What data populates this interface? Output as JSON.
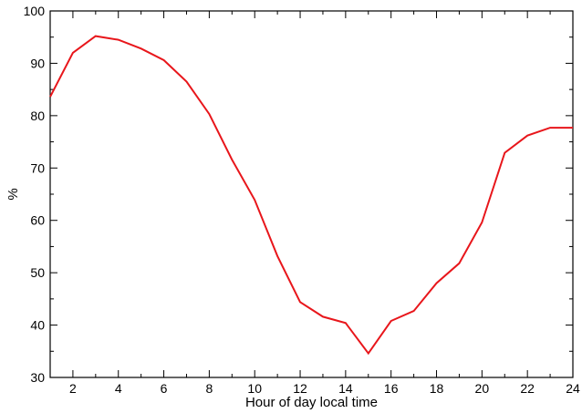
{
  "chart_data": {
    "type": "line",
    "xlabel": "Hour of day local time",
    "ylabel": "%",
    "xlim": [
      1,
      24
    ],
    "ylim": [
      30,
      100
    ],
    "xticks": [
      2,
      4,
      6,
      8,
      10,
      12,
      14,
      16,
      18,
      20,
      22,
      24
    ],
    "yticks": [
      30,
      40,
      50,
      60,
      70,
      80,
      90,
      100
    ],
    "grid": false,
    "legend": "none",
    "series": [
      {
        "color": "#e8161b",
        "x": [
          1,
          2,
          3,
          4,
          5,
          6,
          7,
          8,
          9,
          10,
          11,
          12,
          13,
          14,
          15,
          16,
          17,
          18,
          19,
          20,
          21,
          22,
          23,
          24
        ],
        "y": [
          83.6,
          92.0,
          95.2,
          94.5,
          92.8,
          90.6,
          86.5,
          80.3,
          71.6,
          63.9,
          53.2,
          44.4,
          41.6,
          40.4,
          34.6,
          40.8,
          42.7,
          48.0,
          51.8,
          59.6,
          72.9,
          76.2,
          77.7,
          77.7
        ]
      }
    ]
  }
}
